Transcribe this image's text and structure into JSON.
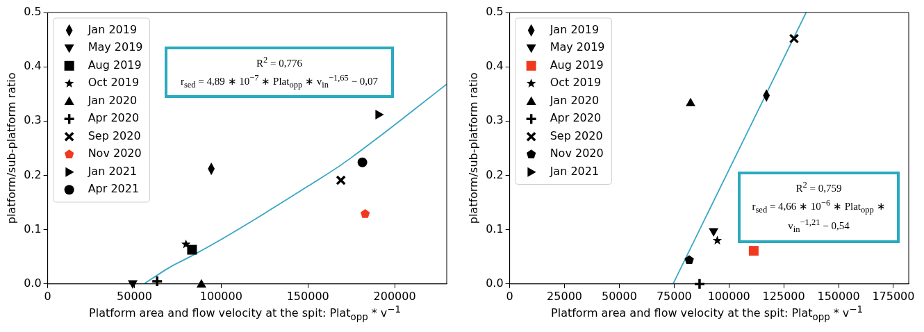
{
  "chart_data": [
    {
      "type": "scatter",
      "xlabel": "Platform area and flow velocity at the spit: Plat$_{opp}$ * v$^{−1}$",
      "ylabel": "platform/sub-platform ratio",
      "xlim": [
        0,
        230000
      ],
      "xticks": [
        0,
        50000,
        100000,
        150000,
        200000
      ],
      "ylim": [
        0,
        0.5
      ],
      "yticks": [
        {
          "value": 0,
          "label": "0.0"
        },
        0.1,
        0.2,
        0.3,
        0.4,
        0.5
      ],
      "grid": false,
      "legend": "top left",
      "annotations": [
        "R$^{2}$ = 0,776",
        "r$_{sed}$ = 4,89 ∗ 10$^{−7}$ ∗  Plat$_{opp}$ ∗  v$_{in}$$^{−1,65}$ − 0,07"
      ],
      "series": [
        {
          "name": "Jan 2019",
          "color": "#000000",
          "marker": "diamond",
          "x": [
            94300
          ],
          "values": [
            0.212
          ]
        },
        {
          "name": "May 2019",
          "color": "#000000",
          "marker": "triangle-down",
          "x": [
            49000
          ],
          "values": [
            0
          ]
        },
        {
          "name": "Aug 2019",
          "color": "#000000",
          "marker": "square",
          "x": [
            83200
          ],
          "values": [
            0.063
          ]
        },
        {
          "name": "Oct 2019",
          "color": "#000000",
          "marker": "star",
          "x": [
            79700
          ],
          "values": [
            0.073
          ]
        },
        {
          "name": "Jan 2020",
          "color": "#000000",
          "marker": "triangle",
          "x": [
            88600
          ],
          "values": [
            0
          ]
        },
        {
          "name": "Apr 2020",
          "color": "#000000",
          "marker": "plus",
          "x": [
            63100
          ],
          "values": [
            0.005
          ]
        },
        {
          "name": "Sep 2020",
          "color": "#000000",
          "marker": "x",
          "x": [
            169000
          ],
          "values": [
            0.191
          ]
        },
        {
          "name": "Nov 2020",
          "color": "#f03a20",
          "x": [
            183000
          ],
          "values": [
            0.129
          ]
        },
        {
          "name": "Jan 2021",
          "color": "#000000",
          "marker": "triangle-right",
          "x": [
            191000
          ],
          "values": [
            0.312
          ]
        },
        {
          "name": "Apr 2021",
          "color": "#000000",
          "marker": "circle",
          "x": [
            181400
          ],
          "values": [
            0.224
          ]
        },
        {
          "type": "line",
          "color": "#3aa6c6",
          "x": [
            55500,
            70000,
            83200,
            100000,
            125000,
            150000,
            169000,
            191000,
            210000,
            230000
          ],
          "values": [
            0,
            0.03,
            0.052,
            0.082,
            0.13,
            0.18,
            0.219,
            0.271,
            0.318,
            0.368
          ]
        }
      ]
    },
    {
      "type": "scatter",
      "xlabel": "Platform area and flow velocity at the spit: Plat$_{opp}$ * v$^{−1}$",
      "ylabel": "platform/sub-platform ratio",
      "xlim": [
        0,
        182000
      ],
      "xticks": [
        0,
        25000,
        50000,
        75000,
        100000,
        125000,
        150000,
        175000
      ],
      "ylim": [
        0,
        0.5
      ],
      "yticks": [
        {
          "value": 0,
          "label": "0.0"
        },
        0.1,
        0.2,
        0.3,
        0.4,
        0.5
      ],
      "grid": false,
      "legend": "top left",
      "annotations": [
        "R$^{2}$ = 0,759",
        "r$_{sed}$ = 4,66 ∗ 10$^{−6}$ ∗  Plat$_{opp}$ ∗  v$_{in}$$^{−1,21}$ − 0,54"
      ],
      "series": [
        {
          "name": "Jan 2019",
          "color": "#000000",
          "marker": "diamond",
          "x": [
            117100
          ],
          "values": [
            0.347
          ]
        },
        {
          "name": "May 2019",
          "color": "#000000",
          "marker": "triangle-down",
          "x": [
            93000
          ],
          "values": [
            0.096
          ]
        },
        {
          "name": "Aug 2019",
          "color": "#f03a20",
          "marker": "square",
          "x": [
            111300
          ],
          "values": [
            0.061
          ]
        },
        {
          "name": "Oct 2019",
          "color": "#000000",
          "marker": "star",
          "x": [
            94700
          ],
          "values": [
            0.08
          ]
        },
        {
          "name": "Jan 2020",
          "color": "#000000",
          "marker": "triangle",
          "x": [
            82500
          ],
          "values": [
            0.334
          ]
        },
        {
          "name": "Apr 2020",
          "color": "#000000",
          "marker": "plus",
          "x": [
            86600
          ],
          "values": [
            0
          ]
        },
        {
          "name": "Sep 2020",
          "color": "#000000",
          "marker": "x",
          "x": [
            129700
          ],
          "values": [
            0.452
          ]
        },
        {
          "name": "Nov 2020",
          "color": "#000000",
          "x": [
            81900
          ],
          "values": [
            0.044
          ]
        },
        {
          "name": "Jan 2021",
          "color": "#000000",
          "marker": "triangle-right"
        },
        {
          "type": "line",
          "color": "#3aa6c6",
          "x": [
            74500,
            135200
          ],
          "values": [
            0,
            0.5
          ]
        }
      ]
    }
  ]
}
